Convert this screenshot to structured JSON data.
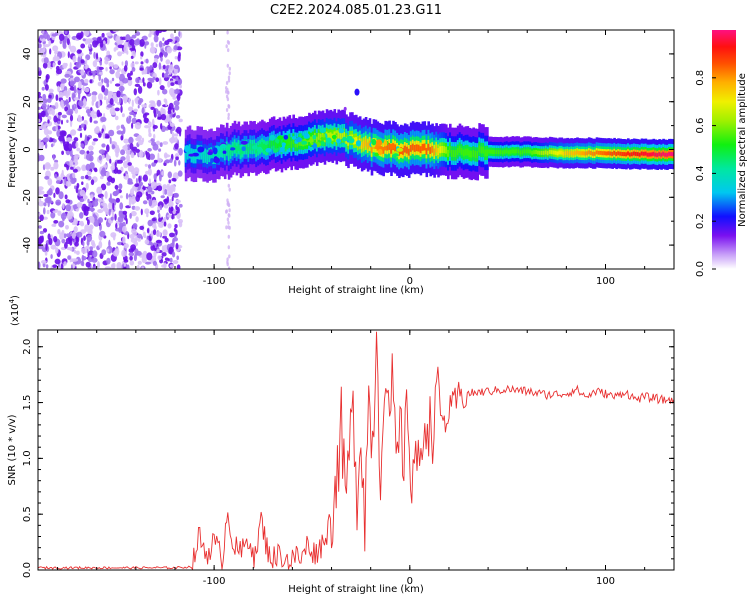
{
  "title": "C2E2.2024.085.01.23.G11",
  "colors": {
    "snr_line": "#e83030",
    "axis": "#000000",
    "scatter": "#7a18e8"
  },
  "chart_data": [
    {
      "type": "heatmap",
      "xlabel": "Height of straight line (km)",
      "ylabel": "Frequency (Hz)",
      "xlim": [
        -190,
        135
      ],
      "ylim": [
        -50,
        50
      ],
      "xticks": [
        -100,
        0,
        100
      ],
      "yticks": [
        40,
        20,
        0,
        -20,
        -40
      ],
      "colorbar": {
        "label": "Normalized spectral amplitude",
        "range": [
          0,
          1
        ],
        "ticks": [
          "0.0",
          "0.2",
          "0.4",
          "0.6",
          "0.8"
        ],
        "tick_values": [
          0.0,
          0.2,
          0.4,
          0.6,
          0.8
        ]
      },
      "noise_region_km": [
        -190,
        -117
      ],
      "ridge": {
        "x": [
          -115,
          -100,
          -90,
          -80,
          -70,
          -60,
          -50,
          -42,
          -35,
          -28,
          -20,
          -10,
          0,
          10,
          20,
          40,
          60,
          80,
          100,
          120,
          135
        ],
        "freq": [
          -2,
          -2,
          0,
          0,
          2,
          3,
          4,
          6,
          5,
          3,
          1,
          0,
          0,
          0,
          -1,
          -1,
          -1,
          -1.5,
          -1.5,
          -2,
          -2
        ],
        "amplitude": [
          0.35,
          0.4,
          0.45,
          0.45,
          0.5,
          0.55,
          0.6,
          0.65,
          0.65,
          0.7,
          0.8,
          0.85,
          0.85,
          0.85,
          0.55,
          0.55,
          0.55,
          0.75,
          0.85,
          0.95,
          1.0
        ]
      }
    },
    {
      "type": "line",
      "xlabel": "Height of straight line (km)",
      "ylabel": "SNR (10 * v/v)",
      "yscale_label": "(x10",
      "yscale_exp": "4",
      "yscale_close": ")",
      "xlim": [
        -190,
        135
      ],
      "ylim": [
        0,
        2.15
      ],
      "xticks": [
        -100,
        0,
        100
      ],
      "yticks": [
        "0.0",
        "0.5",
        "1.0",
        "1.5",
        "2.0"
      ],
      "ytick_values": [
        0.0,
        0.5,
        1.0,
        1.5,
        2.0
      ],
      "series": [
        {
          "name": "SNR",
          "x": [
            -190,
            -150,
            -120,
            -111,
            -108,
            -104,
            -100,
            -96,
            -93,
            -90,
            -86,
            -82,
            -79,
            -76,
            -73,
            -70,
            -66,
            -62,
            -58,
            -55,
            -52,
            -49,
            -46,
            -43,
            -40,
            -37,
            -35,
            -33,
            -31,
            -29,
            -27,
            -25,
            -23,
            -21,
            -19,
            -17,
            -15,
            -13,
            -11,
            -9,
            -7,
            -5,
            -3,
            -1,
            1,
            3,
            5,
            7,
            9,
            11,
            13,
            15,
            17,
            20,
            25,
            30,
            40,
            50,
            60,
            70,
            80,
            85,
            90,
            95,
            100,
            105,
            110,
            115,
            120,
            125,
            130,
            135
          ],
          "y": [
            0.02,
            0.02,
            0.02,
            0.03,
            0.3,
            0.15,
            0.25,
            0.1,
            0.55,
            0.2,
            0.15,
            0.3,
            0.1,
            0.45,
            0.2,
            0.1,
            0.15,
            0.08,
            0.12,
            0.1,
            0.25,
            0.15,
            0.2,
            0.3,
            0.5,
            0.9,
            1.3,
            0.6,
            1.05,
            1.4,
            0.7,
            1.25,
            0.5,
            1.55,
            1.1,
            2.15,
            0.8,
            1.85,
            1.3,
            1.6,
            0.95,
            1.2,
            1.05,
            1.4,
            0.8,
            1.15,
            0.7,
            1.3,
            1.45,
            1.15,
            1.6,
            1.5,
            1.3,
            1.4,
            1.55,
            1.58,
            1.6,
            1.62,
            1.6,
            1.57,
            1.58,
            1.62,
            1.55,
            1.6,
            1.58,
            1.55,
            1.6,
            1.53,
            1.55,
            1.54,
            1.52,
            1.53
          ]
        }
      ]
    }
  ]
}
